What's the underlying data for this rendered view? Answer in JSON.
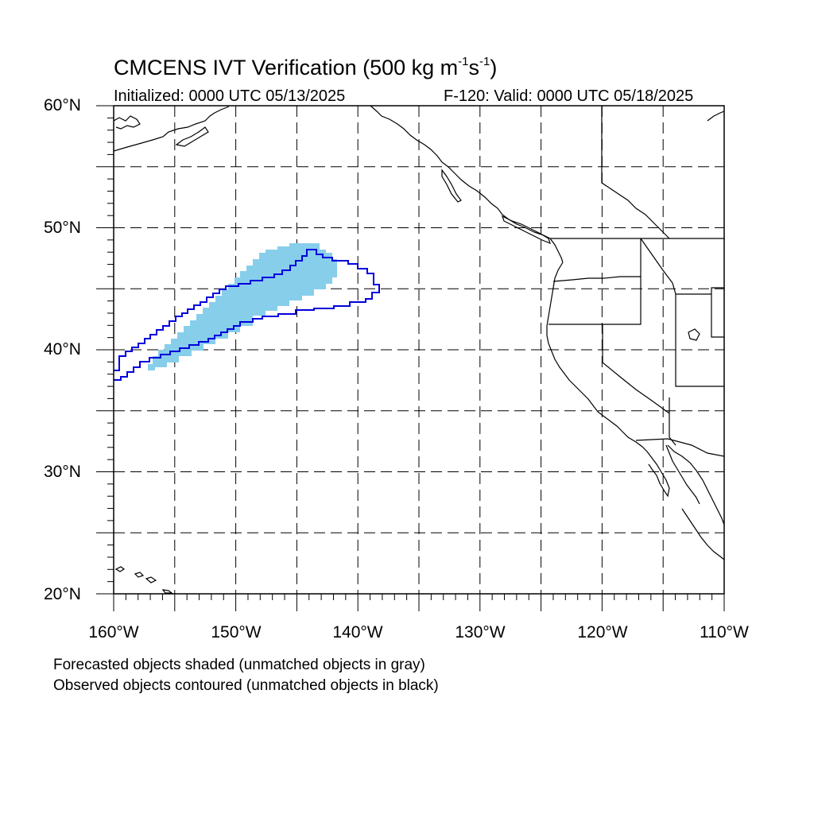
{
  "title": {
    "main": "CMCENS IVT Verification (500 kg m",
    "unit_exp1": "-1",
    "unit_mid": "s",
    "unit_exp2": "-1",
    "unit_close": ")"
  },
  "initialized": "Initialized: 0000 UTC 05/13/2025",
  "valid": "F-120: Valid: 0000 UTC 05/18/2025",
  "lat_labels": [
    "60°N",
    "50°N",
    "40°N",
    "30°N",
    "20°N"
  ],
  "lon_labels": [
    "160°W",
    "150°W",
    "140°W",
    "130°W",
    "120°W",
    "110°W"
  ],
  "notes": [
    "Forecasted objects shaded (unmatched objects in gray)",
    "Observed objects contoured (unmatched objects in black)"
  ],
  "colors": {
    "forecast_fill": "#87ceeb",
    "observed_contour": "#0000dd",
    "coastline": "#000000",
    "grid": "#000000"
  },
  "map_extent": {
    "lon_min": -160,
    "lon_max": -110,
    "lat_min": 20,
    "lat_max": 60
  }
}
